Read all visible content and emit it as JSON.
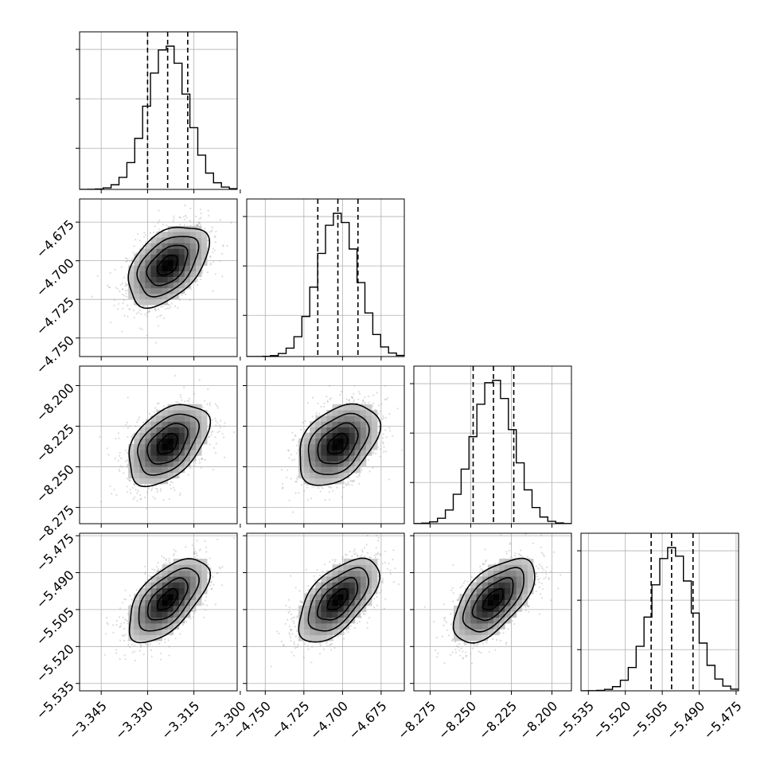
{
  "chart_data": {
    "type": "corner",
    "grid": true,
    "parameters": [
      {
        "ticks": [
          "-3.345",
          "-3.330",
          "-3.315",
          "-3.300"
        ],
        "tick_values": [
          -3.345,
          -3.33,
          -3.315,
          -3.3
        ],
        "range": [
          -3.352,
          -3.301
        ],
        "quantiles": [
          -3.33,
          -3.3235,
          -3.317
        ],
        "mean": -3.3235,
        "sd": 0.0065
      },
      {
        "ticks": [
          "-4.750",
          "-4.725",
          "-4.700",
          "-4.675"
        ],
        "tick_values": [
          -4.75,
          -4.725,
          -4.7,
          -4.675
        ],
        "range": [
          -4.762,
          -4.66
        ],
        "quantiles": [
          -4.716,
          -4.703,
          -4.69
        ],
        "mean": -4.703,
        "sd": 0.013
      },
      {
        "ticks": [
          "-8.275",
          "-8.250",
          "-8.225",
          "-8.200"
        ],
        "tick_values": [
          -8.275,
          -8.25,
          -8.225,
          -8.2
        ],
        "range": [
          -8.285,
          -8.188
        ],
        "quantiles": [
          -8.2485,
          -8.236,
          -8.2235
        ],
        "mean": -8.236,
        "sd": 0.0125
      },
      {
        "ticks": [
          "-5.535",
          "-5.520",
          "-5.505",
          "-5.490",
          "-5.475"
        ],
        "tick_values": [
          -5.535,
          -5.52,
          -5.505,
          -5.49,
          -5.475
        ],
        "range": [
          -5.538,
          -5.474
        ],
        "quantiles": [
          -5.5095,
          -5.5012,
          -5.4925
        ],
        "mean": -5.501,
        "sd": 0.0085
      }
    ],
    "correlations": [
      {
        "row": 1,
        "col": 0,
        "rho": 0.45
      },
      {
        "row": 2,
        "col": 0,
        "rho": 0.45
      },
      {
        "row": 2,
        "col": 1,
        "rho": 0.4
      },
      {
        "row": 3,
        "col": 0,
        "rho": 0.6
      },
      {
        "row": 3,
        "col": 1,
        "rho": 0.6
      },
      {
        "row": 3,
        "col": 2,
        "rho": 0.6
      }
    ],
    "contour_levels_sigma": [
      0.5,
      1.0,
      1.5,
      2.0
    ],
    "histogram_bins": 20,
    "colors": {
      "line": "#000000",
      "points": "#9a9a9a",
      "grid": "#b0b0b0"
    }
  }
}
